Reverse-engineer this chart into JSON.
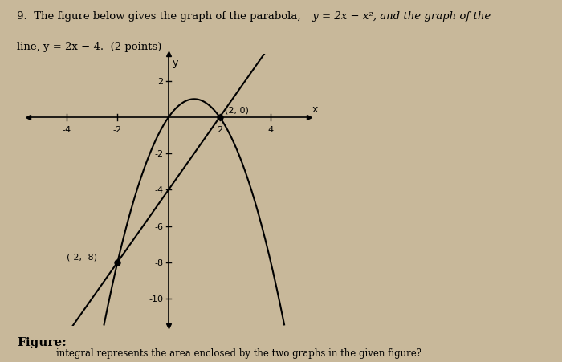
{
  "page_bg": "#c8b89a",
  "graph_bg": "#c8b89a",
  "title_line1": "9.  The figure below gives the graph of the parabola,",
  "title_line1b": " y = 2x − x², and the graph of the",
  "title_line2": "line, y = 2x − 4.  (2 points)",
  "point1": [
    2,
    0
  ],
  "point1_label": "(2, 0)",
  "point2": [
    -2,
    -8
  ],
  "point2_label": "(-2, -8)",
  "xlim": [
    -5.5,
    5.5
  ],
  "ylim": [
    -11.5,
    3.5
  ],
  "xticks": [
    -4,
    -2,
    2,
    4
  ],
  "yticks": [
    -10,
    -8,
    -6,
    -4,
    -2,
    2
  ],
  "axes_color": "#000000",
  "curve_color": "#000000",
  "line_color": "#000000",
  "figure_label": "Figure:",
  "bottom_text": "integral represents the area enclosed by the two graphs in the given figure?",
  "xlabel": "x",
  "ylabel": "y"
}
